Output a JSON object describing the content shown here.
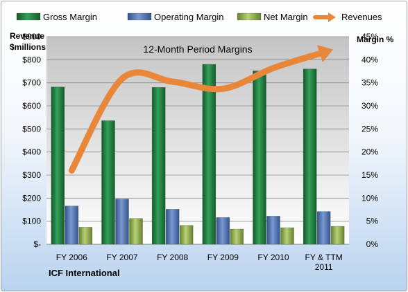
{
  "chart_data": {
    "type": "bar",
    "title": "12-Month Period Margins",
    "company": "ICF International",
    "left_axis_label": [
      "Revenue",
      "$millions"
    ],
    "right_axis_label": "Margin %",
    "categories": [
      "FY 2006",
      "FY 2007",
      "FY 2008",
      "FY 2009",
      "FY 2010",
      "FY & TTM 2011"
    ],
    "left_ticks": [
      "$-",
      "$100",
      "$200",
      "$300",
      "$400",
      "$500",
      "$600",
      "$700",
      "$800",
      "$900"
    ],
    "right_ticks": [
      "0%",
      "5%",
      "10%",
      "15%",
      "20%",
      "25%",
      "30%",
      "35%",
      "40%",
      "45%"
    ],
    "ylim_left": [
      0,
      900
    ],
    "ylim_right": [
      0,
      45
    ],
    "grid": true,
    "legend_position": "top",
    "series": [
      {
        "name": "Gross Margin",
        "axis": "right",
        "color": "#1f7a3a",
        "values": [
          34.1,
          26.8,
          34.0,
          39.0,
          37.6,
          38.0
        ]
      },
      {
        "name": "Operating Margin",
        "axis": "right",
        "color": "#4f6fae",
        "values": [
          8.3,
          9.8,
          7.6,
          5.8,
          6.1,
          7.1
        ]
      },
      {
        "name": "Net Margin",
        "axis": "right",
        "color": "#8aa84a",
        "values": [
          3.7,
          5.6,
          4.1,
          3.3,
          3.6,
          3.9
        ]
      },
      {
        "name": "Revenues",
        "axis": "left",
        "color": "#e8873a",
        "values": [
          320,
          718,
          705,
          674,
          764,
          832
        ]
      }
    ]
  }
}
